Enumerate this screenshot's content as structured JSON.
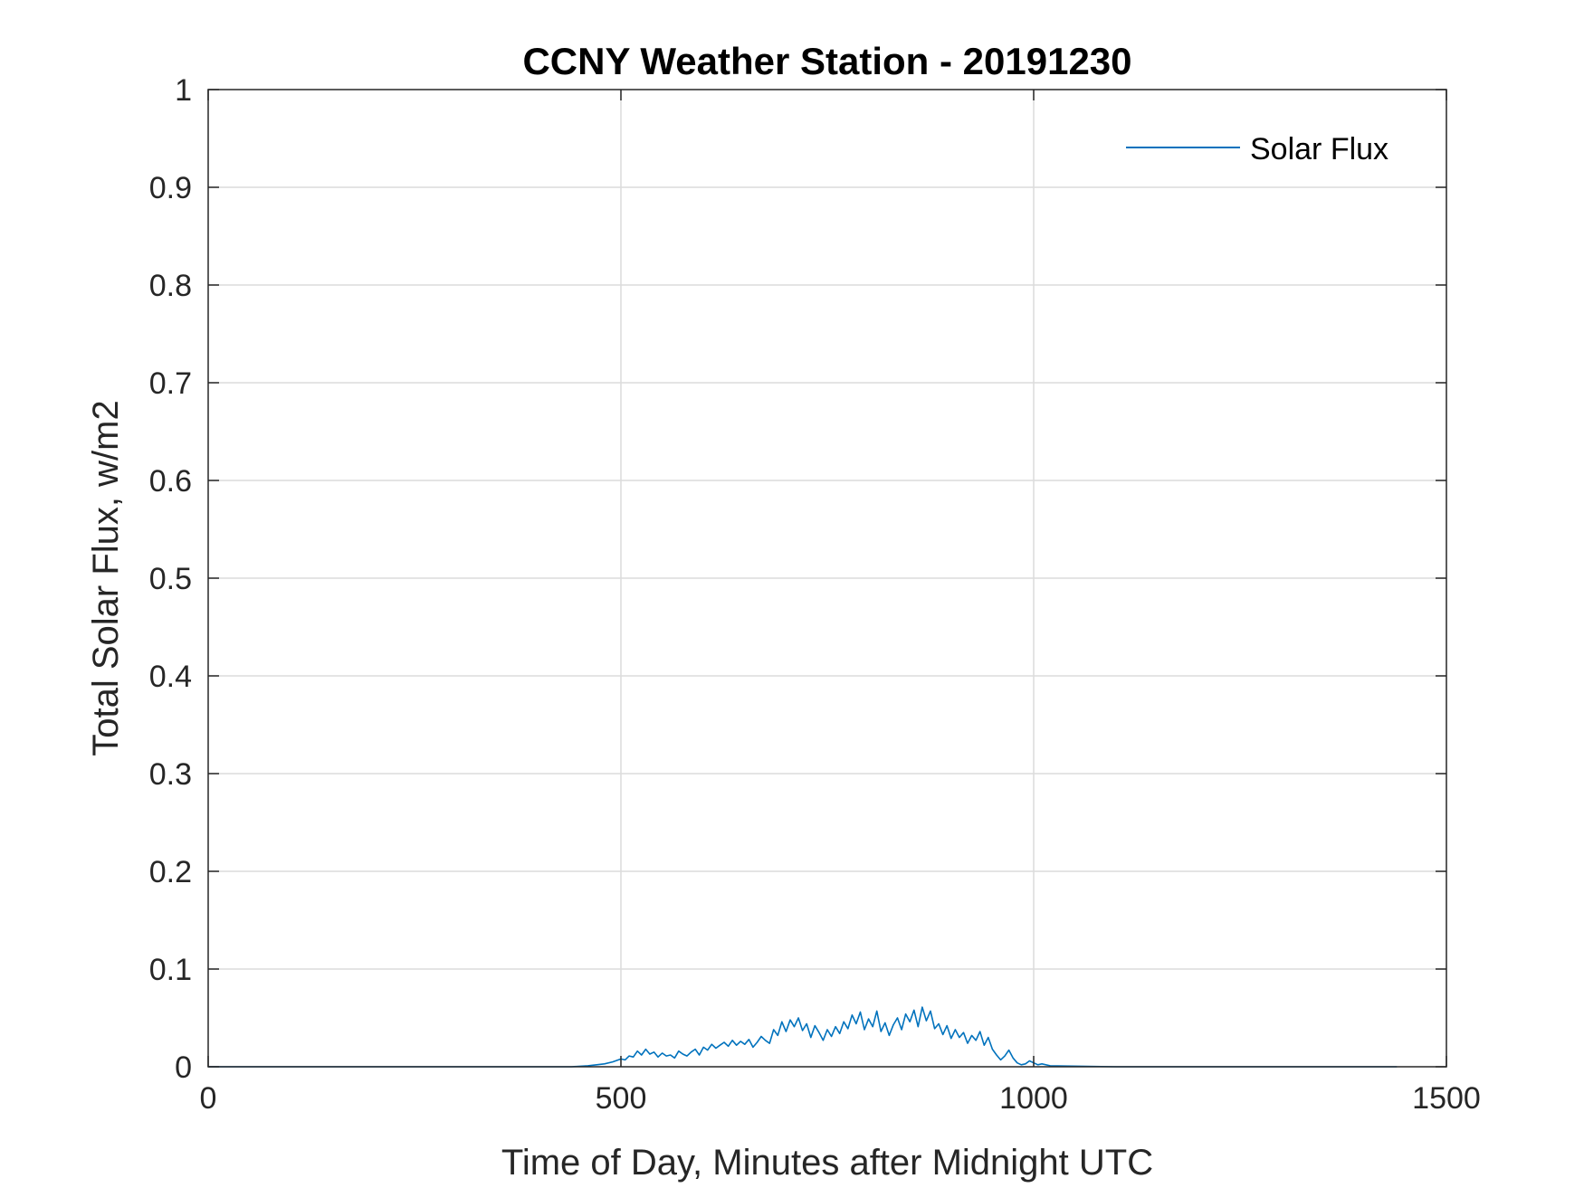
{
  "chart_data": {
    "type": "line",
    "title": "CCNY Weather Station - 20191230",
    "xlabel": "Time of Day, Minutes after Midnight UTC",
    "ylabel": "Total Solar Flux, w/m2",
    "xlim": [
      0,
      1500
    ],
    "ylim": [
      0,
      1
    ],
    "xticks": [
      0,
      500,
      1000,
      1500
    ],
    "xtick_labels": [
      "0",
      "500",
      "1000",
      "1500"
    ],
    "yticks": [
      0,
      0.1,
      0.2,
      0.3,
      0.4,
      0.5,
      0.6,
      0.7,
      0.8,
      0.9,
      1
    ],
    "ytick_labels": [
      "0",
      "0.1",
      "0.2",
      "0.3",
      "0.4",
      "0.5",
      "0.6",
      "0.7",
      "0.8",
      "0.9",
      "1"
    ],
    "grid": true,
    "legend_position": "top-right",
    "series": [
      {
        "name": "Solar Flux",
        "color": "#0072BD",
        "x": [
          0,
          100,
          200,
          300,
          400,
          440,
          460,
          480,
          490,
          500,
          505,
          510,
          515,
          520,
          525,
          530,
          535,
          540,
          545,
          550,
          555,
          560,
          565,
          570,
          575,
          580,
          585,
          590,
          595,
          600,
          605,
          610,
          615,
          620,
          625,
          630,
          635,
          640,
          645,
          650,
          655,
          660,
          665,
          670,
          675,
          680,
          685,
          690,
          695,
          700,
          705,
          710,
          715,
          720,
          725,
          730,
          735,
          740,
          745,
          750,
          755,
          760,
          765,
          770,
          775,
          780,
          785,
          790,
          795,
          800,
          805,
          810,
          815,
          820,
          825,
          830,
          835,
          840,
          845,
          850,
          855,
          860,
          865,
          870,
          875,
          880,
          885,
          890,
          895,
          900,
          905,
          910,
          915,
          920,
          925,
          930,
          935,
          940,
          945,
          950,
          955,
          960,
          965,
          970,
          975,
          980,
          985,
          990,
          995,
          1000,
          1005,
          1010,
          1020,
          1100,
          1200,
          1300,
          1440
        ],
        "values": [
          0,
          0,
          0,
          0,
          0,
          0,
          0.001,
          0.003,
          0.005,
          0.008,
          0.007,
          0.011,
          0.01,
          0.016,
          0.012,
          0.018,
          0.013,
          0.015,
          0.01,
          0.014,
          0.011,
          0.012,
          0.009,
          0.016,
          0.013,
          0.011,
          0.015,
          0.018,
          0.012,
          0.02,
          0.017,
          0.023,
          0.019,
          0.022,
          0.025,
          0.021,
          0.027,
          0.022,
          0.026,
          0.023,
          0.028,
          0.02,
          0.025,
          0.031,
          0.027,
          0.024,
          0.038,
          0.032,
          0.046,
          0.036,
          0.048,
          0.041,
          0.05,
          0.037,
          0.044,
          0.03,
          0.042,
          0.035,
          0.027,
          0.038,
          0.031,
          0.041,
          0.034,
          0.046,
          0.039,
          0.053,
          0.044,
          0.056,
          0.038,
          0.049,
          0.041,
          0.057,
          0.036,
          0.045,
          0.032,
          0.043,
          0.05,
          0.038,
          0.054,
          0.046,
          0.058,
          0.041,
          0.061,
          0.047,
          0.057,
          0.039,
          0.044,
          0.033,
          0.042,
          0.029,
          0.038,
          0.03,
          0.035,
          0.024,
          0.032,
          0.027,
          0.036,
          0.022,
          0.03,
          0.018,
          0.012,
          0.007,
          0.011,
          0.017,
          0.009,
          0.004,
          0.002,
          0.003,
          0.006,
          0.004,
          0.002,
          0.003,
          0.001,
          0.0,
          0.0,
          0.0,
          0.0
        ]
      }
    ]
  }
}
